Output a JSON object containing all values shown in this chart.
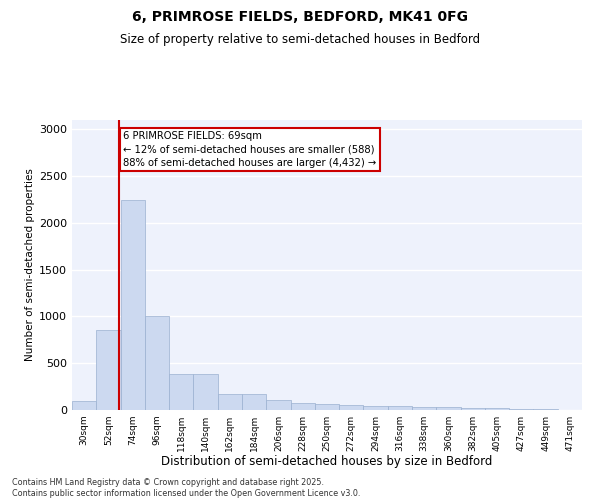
{
  "title_line1": "6, PRIMROSE FIELDS, BEDFORD, MK41 0FG",
  "title_line2": "Size of property relative to semi-detached houses in Bedford",
  "xlabel": "Distribution of semi-detached houses by size in Bedford",
  "ylabel": "Number of semi-detached properties",
  "bar_color": "#ccd9f0",
  "bar_edgecolor": "#9ab0d0",
  "background_color": "#eef2fc",
  "grid_color": "#ffffff",
  "annotation_box_color": "#cc0000",
  "vline_color": "#cc0000",
  "categories": [
    "30sqm",
    "52sqm",
    "74sqm",
    "96sqm",
    "118sqm",
    "140sqm",
    "162sqm",
    "184sqm",
    "206sqm",
    "228sqm",
    "250sqm",
    "272sqm",
    "294sqm",
    "316sqm",
    "338sqm",
    "360sqm",
    "382sqm",
    "405sqm",
    "427sqm",
    "449sqm",
    "471sqm"
  ],
  "values": [
    100,
    850,
    2250,
    1000,
    390,
    390,
    175,
    175,
    110,
    80,
    60,
    50,
    45,
    40,
    35,
    30,
    25,
    20,
    12,
    8,
    5
  ],
  "ylim": [
    0,
    3100
  ],
  "yticks": [
    0,
    500,
    1000,
    1500,
    2000,
    2500,
    3000
  ],
  "annotation_text": "6 PRIMROSE FIELDS: 69sqm\n← 12% of semi-detached houses are smaller (588)\n88% of semi-detached houses are larger (4,432) →",
  "vline_x_index": 1.43,
  "footer_line1": "Contains HM Land Registry data © Crown copyright and database right 2025.",
  "footer_line2": "Contains public sector information licensed under the Open Government Licence v3.0."
}
